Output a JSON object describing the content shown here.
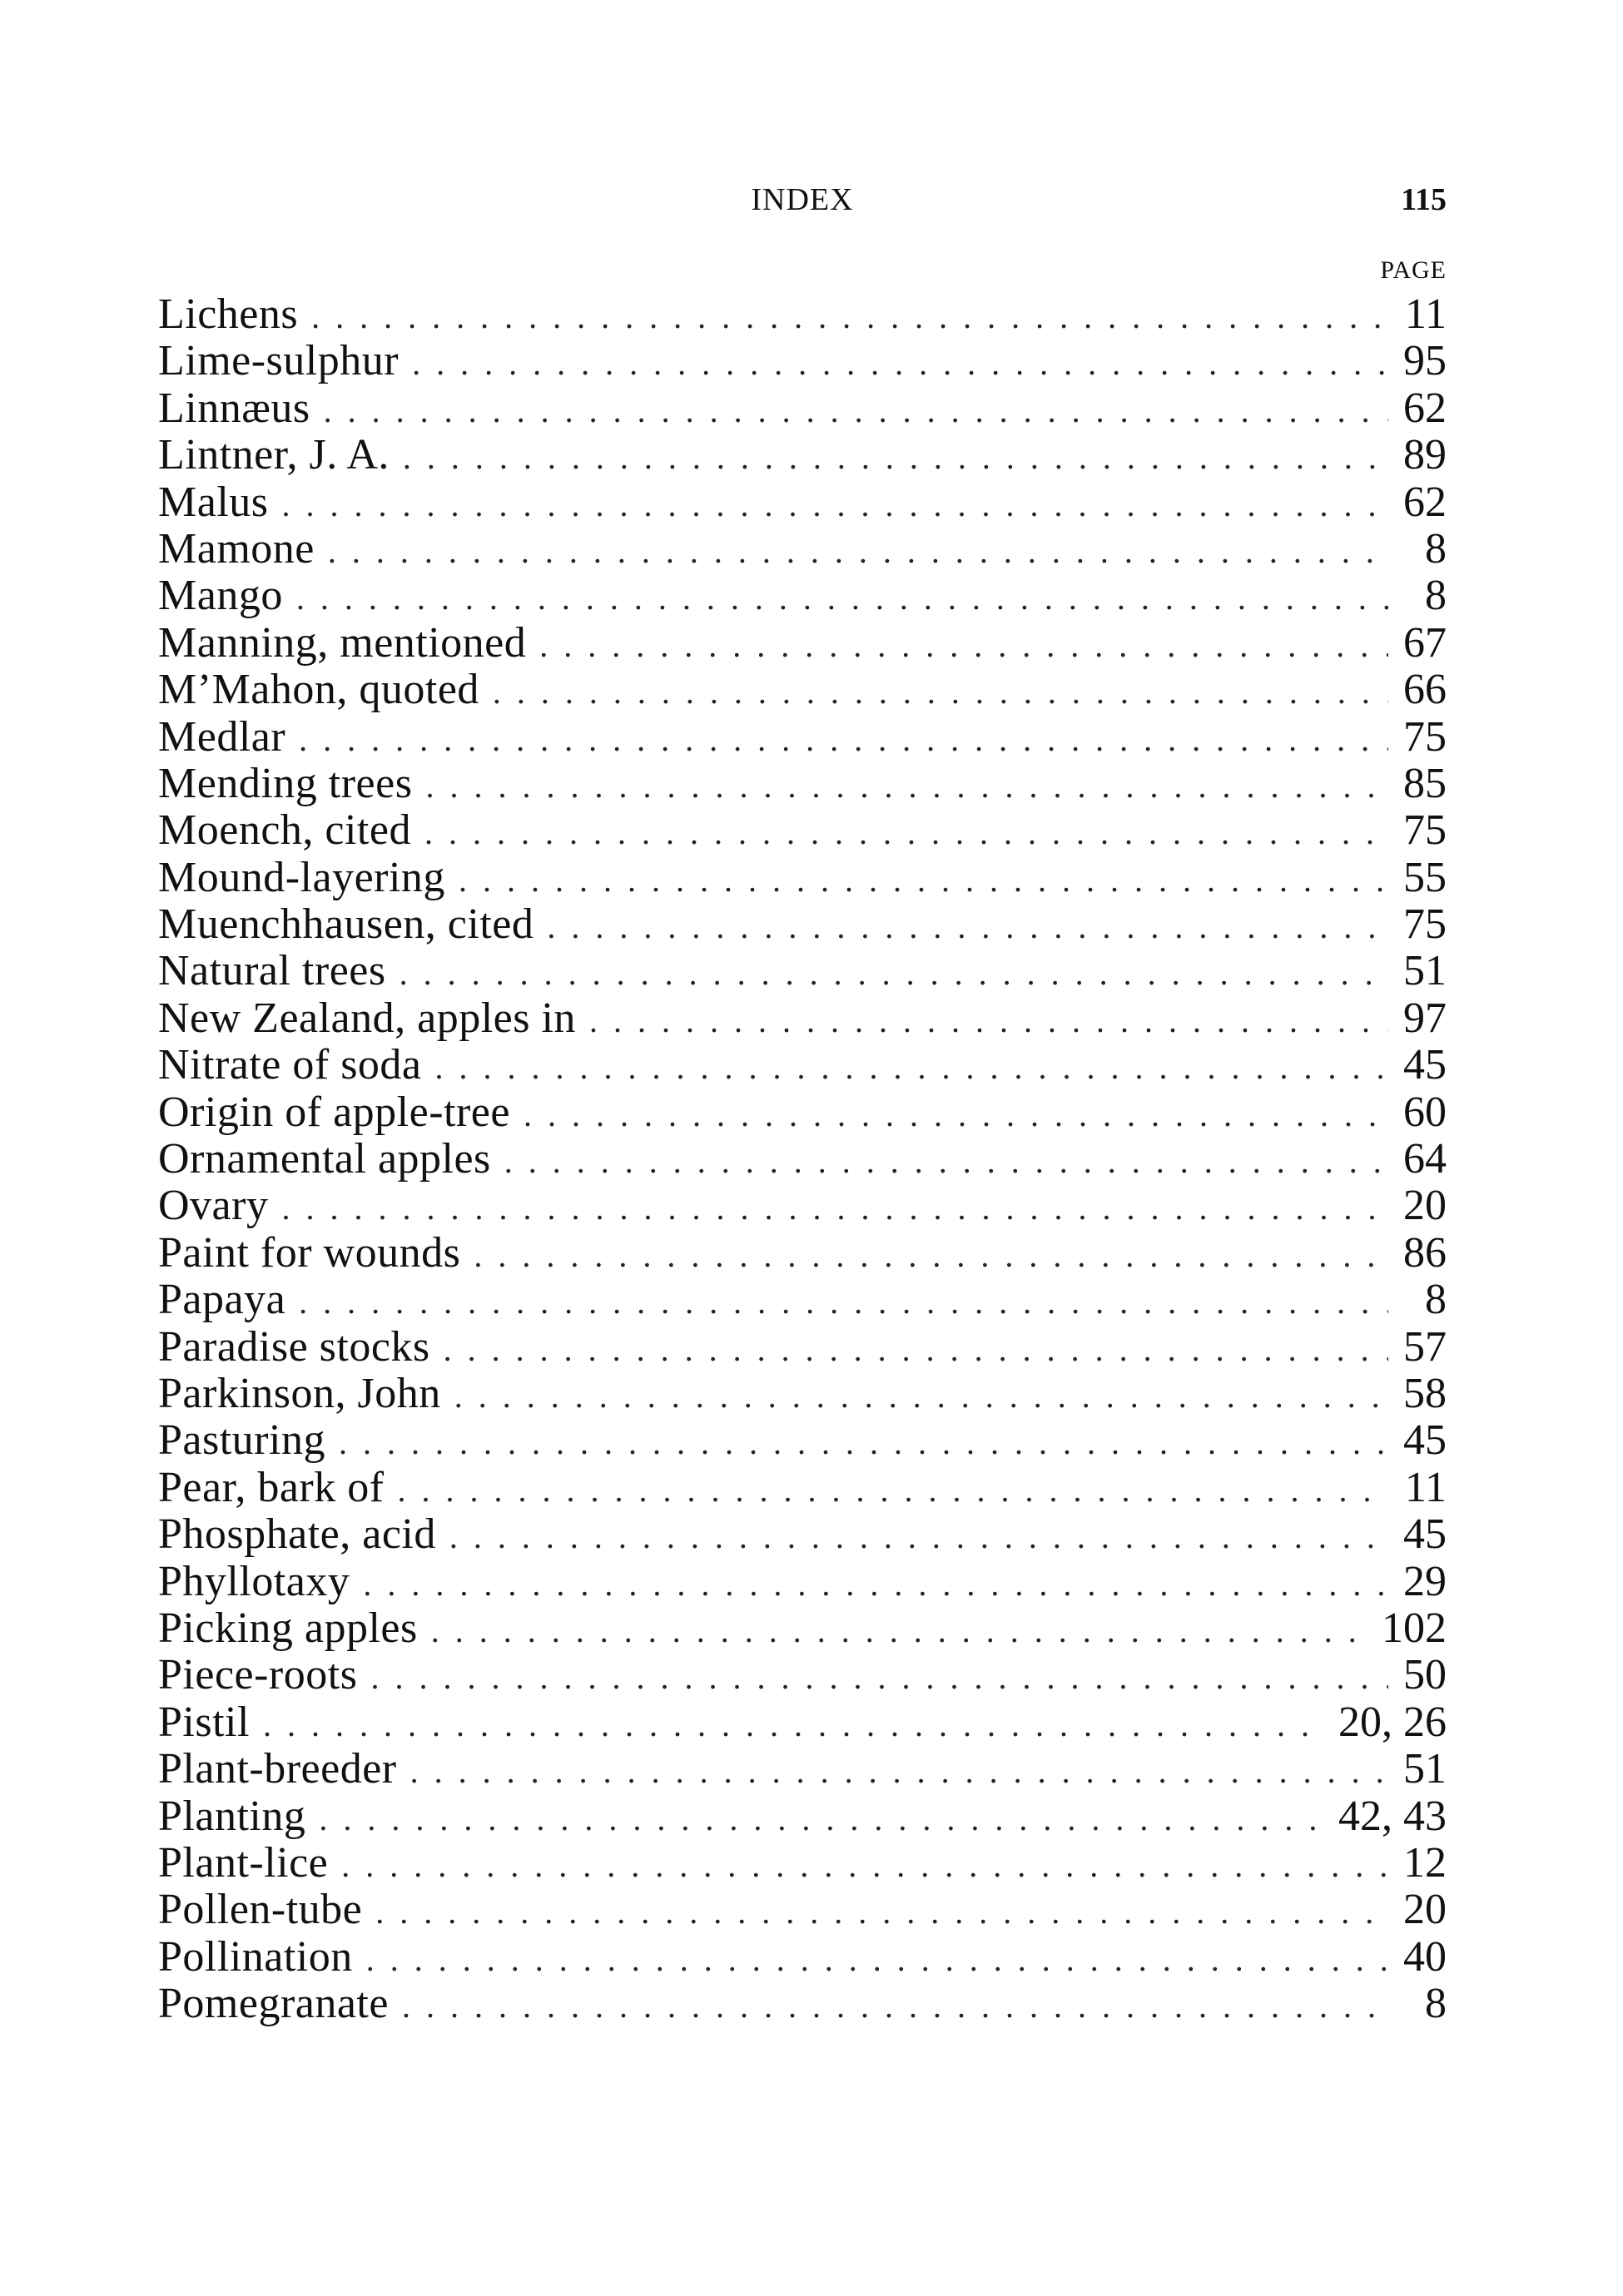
{
  "header": {
    "title": "INDEX",
    "page_number": "115",
    "column_label": "PAGE"
  },
  "entries": [
    {
      "term": "Lichens",
      "page": "11"
    },
    {
      "term": "Lime-sulphur",
      "page": "95"
    },
    {
      "term": "Linnæus",
      "page": "62"
    },
    {
      "term": "Lintner, J. A.",
      "page": "89"
    },
    {
      "term": "Malus",
      "page": "62"
    },
    {
      "term": "Mamone",
      "page": "8"
    },
    {
      "term": "Mango",
      "page": "8"
    },
    {
      "term": "Manning, mentioned",
      "page": "67"
    },
    {
      "term": "M’Mahon, quoted",
      "page": "66"
    },
    {
      "term": "Medlar",
      "page": "75"
    },
    {
      "term": "Mending trees",
      "page": "85"
    },
    {
      "term": "Moench, cited",
      "page": "75"
    },
    {
      "term": "Mound-layering",
      "page": "55"
    },
    {
      "term": "Muenchhausen, cited",
      "page": "75"
    },
    {
      "term": "Natural trees",
      "page": "51"
    },
    {
      "term": "New Zealand, apples in",
      "page": "97"
    },
    {
      "term": "Nitrate of soda",
      "page": "45"
    },
    {
      "term": "Origin of apple-tree",
      "page": "60"
    },
    {
      "term": "Ornamental apples",
      "page": "64"
    },
    {
      "term": "Ovary",
      "page": "20"
    },
    {
      "term": "Paint for wounds",
      "page": "86"
    },
    {
      "term": "Papaya",
      "page": "8"
    },
    {
      "term": "Paradise stocks",
      "page": "57"
    },
    {
      "term": "Parkinson, John",
      "page": "58"
    },
    {
      "term": "Pasturing",
      "page": "45"
    },
    {
      "term": "Pear, bark of",
      "page": "11"
    },
    {
      "term": "Phosphate, acid",
      "page": "45"
    },
    {
      "term": "Phyllotaxy",
      "page": "29"
    },
    {
      "term": "Picking apples",
      "page": "102"
    },
    {
      "term": "Piece-roots",
      "page": "50"
    },
    {
      "term": "Pistil",
      "page": "20, 26"
    },
    {
      "term": "Plant-breeder",
      "page": "51"
    },
    {
      "term": "Planting",
      "page": "42, 43"
    },
    {
      "term": "Plant-lice",
      "page": "12"
    },
    {
      "term": "Pollen-tube",
      "page": "20"
    },
    {
      "term": "Pollination",
      "page": "40"
    },
    {
      "term": "Pomegranate",
      "page": "8"
    }
  ]
}
